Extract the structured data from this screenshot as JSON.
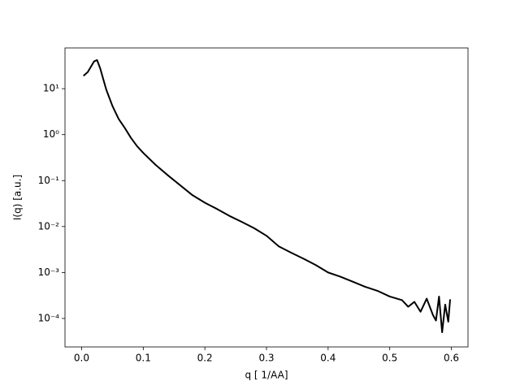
{
  "chart_data": {
    "type": "line",
    "x_label": "q [ 1/AA]",
    "y_label": "I(q) [a.u.]",
    "log_y": true,
    "color": "#000000",
    "x": [
      0.003,
      0.01,
      0.02,
      0.025,
      0.03,
      0.04,
      0.05,
      0.06,
      0.07,
      0.08,
      0.09,
      0.1,
      0.12,
      0.14,
      0.16,
      0.18,
      0.2,
      0.22,
      0.24,
      0.26,
      0.28,
      0.3,
      0.32,
      0.34,
      0.36,
      0.38,
      0.4,
      0.42,
      0.44,
      0.46,
      0.48,
      0.5,
      0.52,
      0.53,
      0.54,
      0.55,
      0.56,
      0.57,
      0.575,
      0.58,
      0.585,
      0.59,
      0.595,
      0.598
    ],
    "values": [
      19,
      23,
      39,
      42,
      28,
      9.5,
      4.2,
      2.2,
      1.4,
      0.85,
      0.56,
      0.4,
      0.22,
      0.13,
      0.079,
      0.048,
      0.033,
      0.024,
      0.017,
      0.0126,
      0.0092,
      0.0063,
      0.0037,
      0.0027,
      0.002,
      0.00145,
      0.001,
      0.00081,
      0.00063,
      0.00049,
      0.0004,
      0.0003,
      0.00025,
      0.00018,
      0.00023,
      0.00014,
      0.00027,
      0.00012,
      9e-05,
      0.0003,
      5e-05,
      0.0002,
      8.5e-05,
      0.00026
    ],
    "xlim": [
      -0.027,
      0.627
    ],
    "xticks": [
      {
        "value": 0,
        "label": "0.0"
      },
      0.1,
      0.2,
      0.3,
      0.4,
      0.5,
      0.6
    ],
    "ylim": [
      2.4e-05,
      77
    ],
    "yticks": [
      {
        "value": 0.0001,
        "label": "10⁻⁴"
      },
      {
        "value": 0.001,
        "label": "10⁻³"
      },
      {
        "value": 0.01,
        "label": "10⁻²"
      },
      {
        "value": 0.1,
        "label": "10⁻¹"
      },
      {
        "value": 1,
        "label": "10⁰"
      },
      {
        "value": 10,
        "label": "10¹"
      }
    ]
  }
}
